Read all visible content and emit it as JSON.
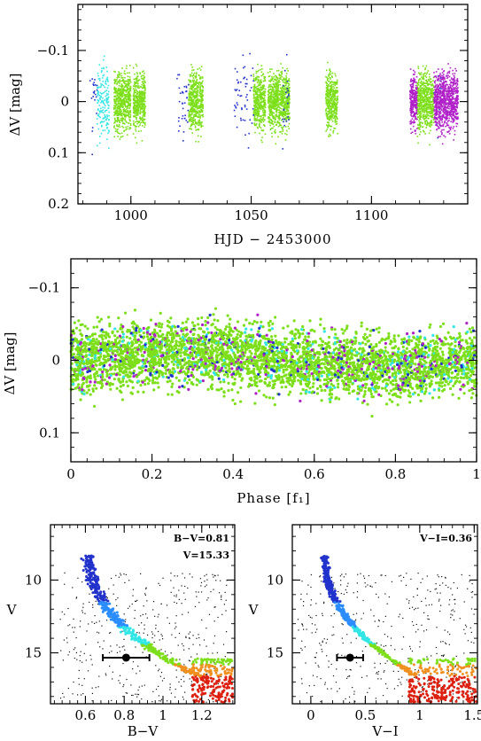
{
  "colors": {
    "cyan": "#33e6e6",
    "green": "#7ddf1a",
    "blue": "#2233cc",
    "magenta": "#b020c8",
    "black": "#111111",
    "orange": "#f09020",
    "red": "#dd2010",
    "lightblue": "#2a8cff"
  },
  "chart_data": [
    {
      "type": "scatter",
      "title": "",
      "xlabel": "HJD − 2453000",
      "ylabel": "ΔV [mag]",
      "xlim": [
        978,
        1140
      ],
      "ylim": [
        0.2,
        -0.19
      ],
      "y_inverted": true,
      "xticks": [
        1000,
        1050,
        1100
      ],
      "xtick_labels": [
        "1000",
        "1050",
        "1100"
      ],
      "yticks": [
        -0.1,
        0,
        0.1,
        0.2
      ],
      "ytick_labels": [
        "−0.1",
        "0",
        "0.1",
        "0.2"
      ],
      "series": [
        {
          "color": "cyan",
          "segments": [
            [
              986,
              991
            ]
          ]
        },
        {
          "color": "green",
          "segments": [
            [
              993,
              1000
            ],
            [
              1001,
              1006
            ],
            [
              1024,
              1030
            ],
            [
              1051,
              1056
            ],
            [
              1057,
              1066
            ],
            [
              1081,
              1086
            ],
            [
              1119,
              1126
            ]
          ]
        },
        {
          "color": "blue",
          "segments": [
            [
              983,
              986
            ],
            [
              1019,
              1024
            ],
            [
              1043,
              1051
            ],
            [
              1063,
              1066
            ],
            [
              1126,
              1129
            ]
          ]
        },
        {
          "color": "magenta",
          "segments": [
            [
              1116,
              1119
            ],
            [
              1126,
              1136
            ]
          ]
        }
      ]
    },
    {
      "type": "scatter",
      "title": "",
      "xlabel": "Phase [f₁]",
      "ylabel": "ΔV [mag]",
      "xlim": [
        0,
        1
      ],
      "ylim": [
        0.14,
        -0.14
      ],
      "y_inverted": true,
      "xticks": [
        0,
        0.2,
        0.4,
        0.6,
        0.8,
        1
      ],
      "xtick_labels": [
        "0",
        "0.2",
        "0.4",
        "0.6",
        "0.8",
        "1"
      ],
      "yticks": [
        -0.1,
        0,
        0.1
      ],
      "ytick_labels": [
        "−0.1",
        "0",
        "0.1"
      ],
      "series_colors": [
        "green",
        "cyan",
        "blue",
        "magenta"
      ]
    },
    {
      "type": "scatter",
      "title": "",
      "xlabel": "B−V",
      "ylabel": "V",
      "xlim": [
        0.42,
        1.37
      ],
      "ylim": [
        18.5,
        6.2
      ],
      "y_inverted": true,
      "xticks": [
        0.6,
        0.8,
        1.0,
        1.2
      ],
      "xtick_labels": [
        "0.6",
        "0.8",
        "1",
        "1.2"
      ],
      "yticks": [
        10,
        15
      ],
      "ytick_labels": [
        "10",
        "15"
      ],
      "annotations": [
        "B−V=0.81",
        "V=15.33"
      ],
      "marker": {
        "x": 0.81,
        "y": 15.33,
        "xerr": 0.12
      }
    },
    {
      "type": "scatter",
      "title": "",
      "xlabel": "V−I",
      "ylabel": "V",
      "xlim": [
        -0.17,
        1.53
      ],
      "ylim": [
        18.5,
        6.2
      ],
      "y_inverted": true,
      "xticks": [
        0,
        0.5,
        1.0,
        1.5
      ],
      "xtick_labels": [
        "0",
        "0.5",
        "1",
        "1.5"
      ],
      "yticks": [
        10,
        15
      ],
      "ytick_labels": [
        "10",
        "15"
      ],
      "annotations": [
        "V−I=0.36"
      ],
      "marker": {
        "x": 0.36,
        "y": 15.33,
        "xerr": 0.12
      }
    }
  ]
}
